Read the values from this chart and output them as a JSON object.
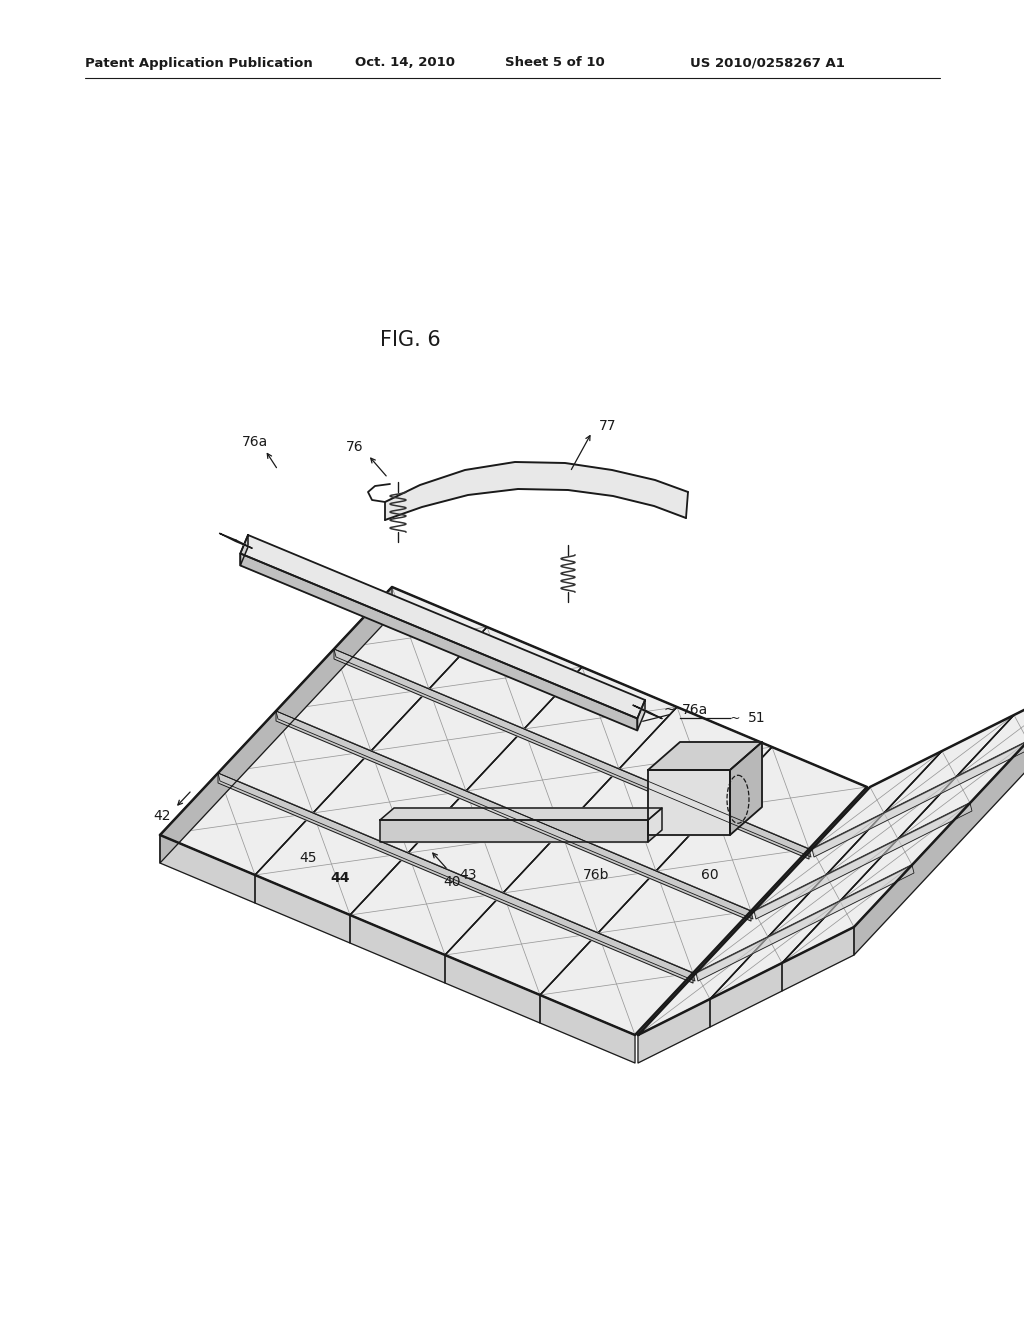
{
  "bg_color": "#ffffff",
  "lc": "#1a1a1a",
  "grid_fill": "#e8e8e8",
  "hatch_color": "#888888",
  "face_mid": "#d0d0d0",
  "face_dark": "#b8b8b8",
  "face_light": "#f0f0f0",
  "header_text": "Patent Application Publication",
  "header_date": "Oct. 14, 2010",
  "header_sheet": "Sheet 5 of 10",
  "header_patent": "US 2010/0258267 A1",
  "fig_label": "FIG. 6"
}
